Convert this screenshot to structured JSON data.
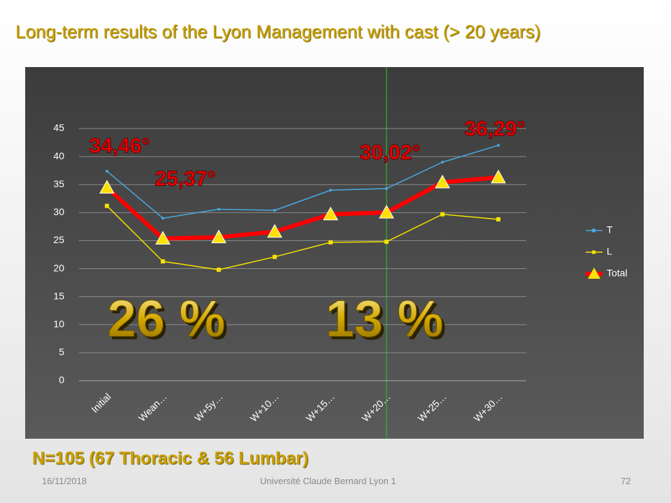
{
  "title": "Long-term results of the Lyon Management with cast (> 20 years)",
  "subtitle": "N=105 (67 Thoracic & 56 Lumbar)",
  "footer": {
    "date": "16/11/2018",
    "institution": "Université Claude Bernard Lyon 1",
    "page": "72"
  },
  "chart_data": {
    "type": "line",
    "categories": [
      "Initial",
      "Wean…",
      "W+5y…",
      "W+10…",
      "W+15…",
      "W+20…",
      "W+25…",
      "W+30…"
    ],
    "series": [
      {
        "name": "T",
        "color": "#4aa8e0",
        "values": [
          37.4,
          29.0,
          30.6,
          30.4,
          34.0,
          34.3,
          39.0,
          42.0
        ]
      },
      {
        "name": "L",
        "color": "#f2e200",
        "values": [
          31.2,
          21.3,
          19.8,
          22.1,
          24.7,
          24.8,
          29.7,
          28.8
        ]
      },
      {
        "name": "Total",
        "color": "#ff0000",
        "values": [
          34.46,
          25.37,
          25.6,
          26.6,
          29.7,
          30.02,
          35.4,
          36.29
        ],
        "value_labels": [
          "34,46°",
          "25,37°",
          null,
          null,
          null,
          "30,02°",
          null,
          "36,29°"
        ]
      }
    ],
    "ylim": [
      0,
      45
    ],
    "yticks": [
      0,
      5,
      10,
      15,
      20,
      25,
      30,
      35,
      40,
      45
    ],
    "grid": true,
    "legend": "right",
    "annotations": [
      "26 %",
      "13 %"
    ]
  }
}
